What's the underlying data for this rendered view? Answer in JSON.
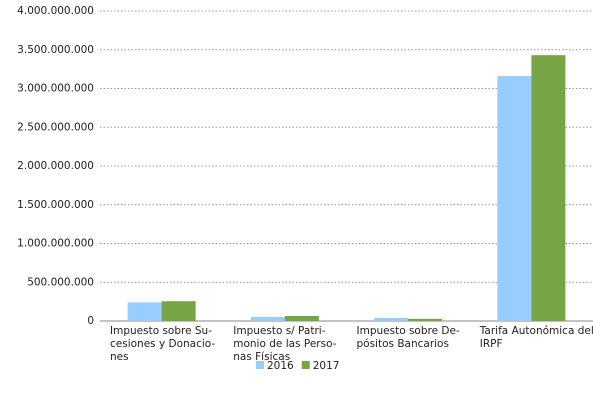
{
  "chart_data": {
    "type": "bar",
    "categories": [
      [
        "Impuesto sobre Su-",
        "cesiones y Donacio-",
        "nes"
      ],
      [
        "Impuesto s/ Patri-",
        "monio de las Perso-",
        "nas Físicas"
      ],
      [
        "Impuesto sobre De-",
        "pósitos Bancarios"
      ],
      [
        "Tarifa Autonómica del",
        "IRPF"
      ]
    ],
    "series": [
      {
        "name": "2016",
        "color": "#99ccff",
        "values": [
          240000000,
          52000000,
          40000000,
          3160000000
        ]
      },
      {
        "name": "2017",
        "color": "#77a545",
        "values": [
          255000000,
          65000000,
          28000000,
          3430000000
        ]
      }
    ],
    "ylim": [
      0,
      4000000000
    ],
    "yticks": [
      0,
      {
        "value": 500000000,
        "label": "500.000.000"
      },
      {
        "value": 1000000000,
        "label": "1.000.000.000"
      },
      {
        "value": 1500000000,
        "label": "1.500.000.000"
      },
      {
        "value": 2000000000,
        "label": "2.000.000.000"
      },
      {
        "value": 2500000000,
        "label": "2.500.000.000"
      },
      {
        "value": 3000000000,
        "label": "3.000.000.000"
      },
      {
        "value": 3500000000,
        "label": "3.500.000.000"
      },
      {
        "value": 4000000000,
        "label": "4.000.000.000"
      }
    ],
    "grid": true,
    "legend": "bottom"
  }
}
